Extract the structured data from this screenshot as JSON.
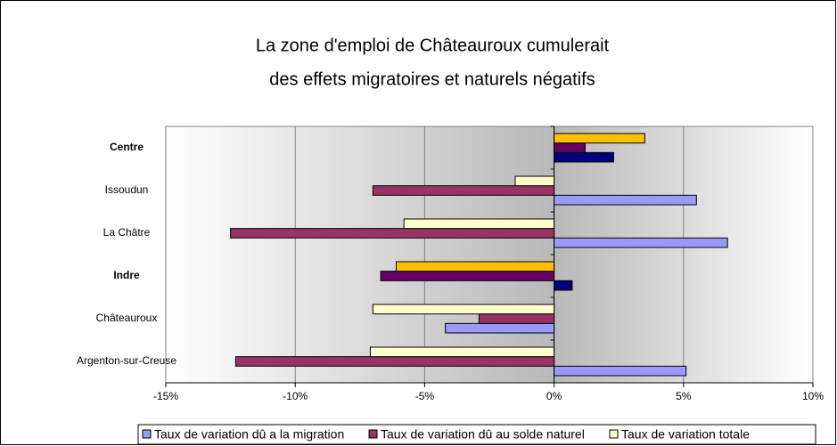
{
  "chart_data": {
    "type": "hbar",
    "title": [
      "La zone d'emploi de Châteauroux cumulerait",
      "des effets migratoires et naturels négatifs"
    ],
    "categories": [
      "Centre",
      "Issoudun",
      "La Châtre",
      "Indre",
      "Châteauroux",
      "Argenton-sur-Creuse"
    ],
    "highlight": [
      true,
      false,
      false,
      true,
      false,
      false
    ],
    "series": [
      {
        "name": "Taux de variation dû a la migration",
        "color": "#9999ff",
        "highlight_color": "#000080",
        "values": [
          2.3,
          5.5,
          6.7,
          0.7,
          -4.2,
          5.1
        ]
      },
      {
        "name": "Taux de variation dû au solde naturel",
        "color": "#993366",
        "highlight_color": "#660066",
        "values": [
          1.2,
          -7.0,
          -12.5,
          -6.7,
          -2.9,
          -12.3
        ]
      },
      {
        "name": "Taux de variation totale",
        "color": "#ffffcc",
        "highlight_color": "#ffc000",
        "values": [
          3.5,
          -1.5,
          -5.8,
          -6.1,
          -7.0,
          -7.1
        ]
      }
    ],
    "xlim": [
      -15,
      10
    ],
    "xticks": [
      {
        "value": -15,
        "label": "-15%"
      },
      {
        "value": -10,
        "label": "-10%"
      },
      {
        "value": -5,
        "label": "-5%"
      },
      {
        "value": 0,
        "label": "0%"
      },
      {
        "value": 5,
        "label": "5%"
      },
      {
        "value": 10,
        "label": "10%"
      }
    ],
    "grid": true
  }
}
